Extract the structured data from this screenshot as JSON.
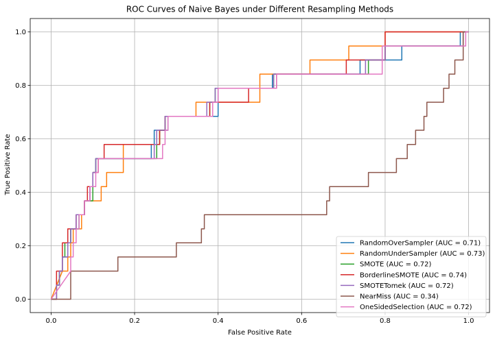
{
  "chart_data": {
    "type": "line",
    "title": "ROC Curves of Naive Bayes under Different Resampling Methods",
    "xlabel": "False Positive Rate",
    "ylabel": "True Positive Rate",
    "xlim": [
      -0.05,
      1.05
    ],
    "ylim": [
      -0.05,
      1.05
    ],
    "xticks": [
      "0.0",
      "0.2",
      "0.4",
      "0.6",
      "0.8",
      "1.0"
    ],
    "yticks": [
      "0.0",
      "0.2",
      "0.4",
      "0.6",
      "0.8",
      "1.0"
    ],
    "grid": true,
    "legend_position": "lower-right",
    "series": [
      {
        "name": "RandomOverSampler (AUC = 0.71)",
        "color": "#1f77b4",
        "points": [
          [
            0,
            0
          ],
          [
            0.013,
            0
          ],
          [
            0.013,
            0.053
          ],
          [
            0.02,
            0.053
          ],
          [
            0.02,
            0.105
          ],
          [
            0.027,
            0.105
          ],
          [
            0.027,
            0.158
          ],
          [
            0.04,
            0.158
          ],
          [
            0.04,
            0.211
          ],
          [
            0.047,
            0.211
          ],
          [
            0.047,
            0.263
          ],
          [
            0.067,
            0.263
          ],
          [
            0.067,
            0.316
          ],
          [
            0.08,
            0.316
          ],
          [
            0.08,
            0.368
          ],
          [
            0.093,
            0.368
          ],
          [
            0.093,
            0.421
          ],
          [
            0.1,
            0.421
          ],
          [
            0.1,
            0.474
          ],
          [
            0.107,
            0.474
          ],
          [
            0.107,
            0.526
          ],
          [
            0.24,
            0.526
          ],
          [
            0.24,
            0.579
          ],
          [
            0.247,
            0.579
          ],
          [
            0.247,
            0.632
          ],
          [
            0.28,
            0.632
          ],
          [
            0.28,
            0.684
          ],
          [
            0.4,
            0.684
          ],
          [
            0.4,
            0.789
          ],
          [
            0.53,
            0.789
          ],
          [
            0.53,
            0.842
          ],
          [
            0.74,
            0.842
          ],
          [
            0.74,
            0.895
          ],
          [
            0.84,
            0.895
          ],
          [
            0.84,
            0.947
          ],
          [
            0.98,
            0.947
          ],
          [
            0.98,
            1
          ],
          [
            1,
            1
          ]
        ]
      },
      {
        "name": "RandomUnderSampler (AUC = 0.73)",
        "color": "#ff7f0e",
        "points": [
          [
            0,
            0
          ],
          [
            0.027,
            0.105
          ],
          [
            0.04,
            0.105
          ],
          [
            0.04,
            0.158
          ],
          [
            0.047,
            0.158
          ],
          [
            0.047,
            0.211
          ],
          [
            0.053,
            0.211
          ],
          [
            0.053,
            0.263
          ],
          [
            0.073,
            0.263
          ],
          [
            0.073,
            0.316
          ],
          [
            0.08,
            0.316
          ],
          [
            0.08,
            0.368
          ],
          [
            0.12,
            0.368
          ],
          [
            0.12,
            0.421
          ],
          [
            0.133,
            0.421
          ],
          [
            0.133,
            0.474
          ],
          [
            0.173,
            0.474
          ],
          [
            0.173,
            0.579
          ],
          [
            0.26,
            0.579
          ],
          [
            0.26,
            0.632
          ],
          [
            0.273,
            0.632
          ],
          [
            0.273,
            0.684
          ],
          [
            0.347,
            0.684
          ],
          [
            0.347,
            0.737
          ],
          [
            0.5,
            0.737
          ],
          [
            0.5,
            0.842
          ],
          [
            0.62,
            0.842
          ],
          [
            0.62,
            0.895
          ],
          [
            0.713,
            0.895
          ],
          [
            0.713,
            0.947
          ],
          [
            0.8,
            0.947
          ],
          [
            0.8,
            1
          ],
          [
            1,
            1
          ]
        ]
      },
      {
        "name": "SMOTE (AUC = 0.72)",
        "color": "#2ca02c",
        "points": [
          [
            0,
            0
          ],
          [
            0.013,
            0
          ],
          [
            0.013,
            0.053
          ],
          [
            0.02,
            0.053
          ],
          [
            0.02,
            0.105
          ],
          [
            0.027,
            0.105
          ],
          [
            0.027,
            0.158
          ],
          [
            0.033,
            0.158
          ],
          [
            0.033,
            0.211
          ],
          [
            0.047,
            0.211
          ],
          [
            0.047,
            0.263
          ],
          [
            0.067,
            0.263
          ],
          [
            0.067,
            0.316
          ],
          [
            0.08,
            0.316
          ],
          [
            0.08,
            0.368
          ],
          [
            0.1,
            0.368
          ],
          [
            0.1,
            0.474
          ],
          [
            0.107,
            0.474
          ],
          [
            0.107,
            0.526
          ],
          [
            0.253,
            0.526
          ],
          [
            0.253,
            0.579
          ],
          [
            0.26,
            0.579
          ],
          [
            0.26,
            0.632
          ],
          [
            0.273,
            0.632
          ],
          [
            0.273,
            0.684
          ],
          [
            0.38,
            0.684
          ],
          [
            0.38,
            0.737
          ],
          [
            0.393,
            0.737
          ],
          [
            0.393,
            0.789
          ],
          [
            0.533,
            0.789
          ],
          [
            0.533,
            0.842
          ],
          [
            0.76,
            0.842
          ],
          [
            0.76,
            0.895
          ],
          [
            0.8,
            0.895
          ],
          [
            0.8,
            0.947
          ],
          [
            0.987,
            0.947
          ],
          [
            0.987,
            1
          ],
          [
            1,
            1
          ]
        ]
      },
      {
        "name": "BorderlineSMOTE (AUC = 0.74)",
        "color": "#d62728",
        "points": [
          [
            0,
            0
          ],
          [
            0.013,
            0
          ],
          [
            0.013,
            0.105
          ],
          [
            0.027,
            0.105
          ],
          [
            0.027,
            0.211
          ],
          [
            0.04,
            0.211
          ],
          [
            0.04,
            0.263
          ],
          [
            0.06,
            0.263
          ],
          [
            0.06,
            0.316
          ],
          [
            0.08,
            0.316
          ],
          [
            0.08,
            0.368
          ],
          [
            0.087,
            0.368
          ],
          [
            0.087,
            0.421
          ],
          [
            0.1,
            0.421
          ],
          [
            0.1,
            0.474
          ],
          [
            0.113,
            0.474
          ],
          [
            0.113,
            0.526
          ],
          [
            0.127,
            0.526
          ],
          [
            0.127,
            0.579
          ],
          [
            0.26,
            0.579
          ],
          [
            0.26,
            0.632
          ],
          [
            0.273,
            0.632
          ],
          [
            0.273,
            0.684
          ],
          [
            0.38,
            0.684
          ],
          [
            0.38,
            0.737
          ],
          [
            0.473,
            0.737
          ],
          [
            0.473,
            0.789
          ],
          [
            0.54,
            0.789
          ],
          [
            0.54,
            0.842
          ],
          [
            0.707,
            0.842
          ],
          [
            0.707,
            0.895
          ],
          [
            0.8,
            0.895
          ],
          [
            0.8,
            1
          ],
          [
            1,
            1
          ]
        ]
      },
      {
        "name": "SMOTETomek (AUC = 0.72)",
        "color": "#9467bd",
        "points": [
          [
            0,
            0
          ],
          [
            0.013,
            0
          ],
          [
            0.013,
            0.053
          ],
          [
            0.02,
            0.053
          ],
          [
            0.02,
            0.105
          ],
          [
            0.027,
            0.105
          ],
          [
            0.027,
            0.158
          ],
          [
            0.04,
            0.158
          ],
          [
            0.04,
            0.211
          ],
          [
            0.047,
            0.211
          ],
          [
            0.047,
            0.263
          ],
          [
            0.06,
            0.263
          ],
          [
            0.06,
            0.316
          ],
          [
            0.08,
            0.316
          ],
          [
            0.08,
            0.368
          ],
          [
            0.093,
            0.368
          ],
          [
            0.093,
            0.421
          ],
          [
            0.1,
            0.421
          ],
          [
            0.1,
            0.474
          ],
          [
            0.107,
            0.474
          ],
          [
            0.107,
            0.526
          ],
          [
            0.247,
            0.526
          ],
          [
            0.247,
            0.579
          ],
          [
            0.253,
            0.579
          ],
          [
            0.253,
            0.632
          ],
          [
            0.273,
            0.632
          ],
          [
            0.273,
            0.684
          ],
          [
            0.373,
            0.684
          ],
          [
            0.373,
            0.737
          ],
          [
            0.393,
            0.737
          ],
          [
            0.393,
            0.789
          ],
          [
            0.533,
            0.789
          ],
          [
            0.533,
            0.842
          ],
          [
            0.753,
            0.842
          ],
          [
            0.753,
            0.895
          ],
          [
            0.8,
            0.895
          ],
          [
            0.8,
            0.947
          ],
          [
            0.987,
            0.947
          ],
          [
            0.987,
            1
          ],
          [
            1,
            1
          ]
        ]
      },
      {
        "name": "NearMiss (AUC = 0.34)",
        "color": "#8c564b",
        "points": [
          [
            0,
            0
          ],
          [
            0.047,
            0
          ],
          [
            0.047,
            0.105
          ],
          [
            0.16,
            0.105
          ],
          [
            0.16,
            0.158
          ],
          [
            0.3,
            0.158
          ],
          [
            0.3,
            0.211
          ],
          [
            0.36,
            0.211
          ],
          [
            0.36,
            0.263
          ],
          [
            0.367,
            0.263
          ],
          [
            0.367,
            0.316
          ],
          [
            0.66,
            0.316
          ],
          [
            0.66,
            0.368
          ],
          [
            0.667,
            0.368
          ],
          [
            0.667,
            0.421
          ],
          [
            0.76,
            0.421
          ],
          [
            0.76,
            0.474
          ],
          [
            0.827,
            0.474
          ],
          [
            0.827,
            0.526
          ],
          [
            0.853,
            0.526
          ],
          [
            0.853,
            0.579
          ],
          [
            0.873,
            0.579
          ],
          [
            0.873,
            0.632
          ],
          [
            0.893,
            0.632
          ],
          [
            0.893,
            0.684
          ],
          [
            0.9,
            0.684
          ],
          [
            0.9,
            0.737
          ],
          [
            0.94,
            0.737
          ],
          [
            0.94,
            0.789
          ],
          [
            0.953,
            0.789
          ],
          [
            0.953,
            0.842
          ],
          [
            0.967,
            0.842
          ],
          [
            0.967,
            0.895
          ],
          [
            0.987,
            0.895
          ],
          [
            0.987,
            1
          ],
          [
            1,
            1
          ]
        ]
      },
      {
        "name": "OneSidedSelection (AUC = 0.72)",
        "color": "#e377c2",
        "points": [
          [
            0,
            0
          ],
          [
            0.047,
            0.105
          ],
          [
            0.047,
            0.158
          ],
          [
            0.053,
            0.158
          ],
          [
            0.053,
            0.211
          ],
          [
            0.06,
            0.211
          ],
          [
            0.06,
            0.263
          ],
          [
            0.067,
            0.263
          ],
          [
            0.067,
            0.316
          ],
          [
            0.08,
            0.316
          ],
          [
            0.08,
            0.368
          ],
          [
            0.093,
            0.368
          ],
          [
            0.093,
            0.421
          ],
          [
            0.107,
            0.421
          ],
          [
            0.107,
            0.474
          ],
          [
            0.113,
            0.474
          ],
          [
            0.113,
            0.526
          ],
          [
            0.267,
            0.526
          ],
          [
            0.267,
            0.579
          ],
          [
            0.273,
            0.579
          ],
          [
            0.273,
            0.632
          ],
          [
            0.28,
            0.632
          ],
          [
            0.28,
            0.684
          ],
          [
            0.387,
            0.684
          ],
          [
            0.387,
            0.737
          ],
          [
            0.4,
            0.737
          ],
          [
            0.4,
            0.789
          ],
          [
            0.54,
            0.789
          ],
          [
            0.54,
            0.842
          ],
          [
            0.793,
            0.842
          ],
          [
            0.793,
            0.947
          ],
          [
            0.993,
            0.947
          ],
          [
            0.993,
            1
          ],
          [
            1,
            1
          ]
        ]
      }
    ]
  }
}
